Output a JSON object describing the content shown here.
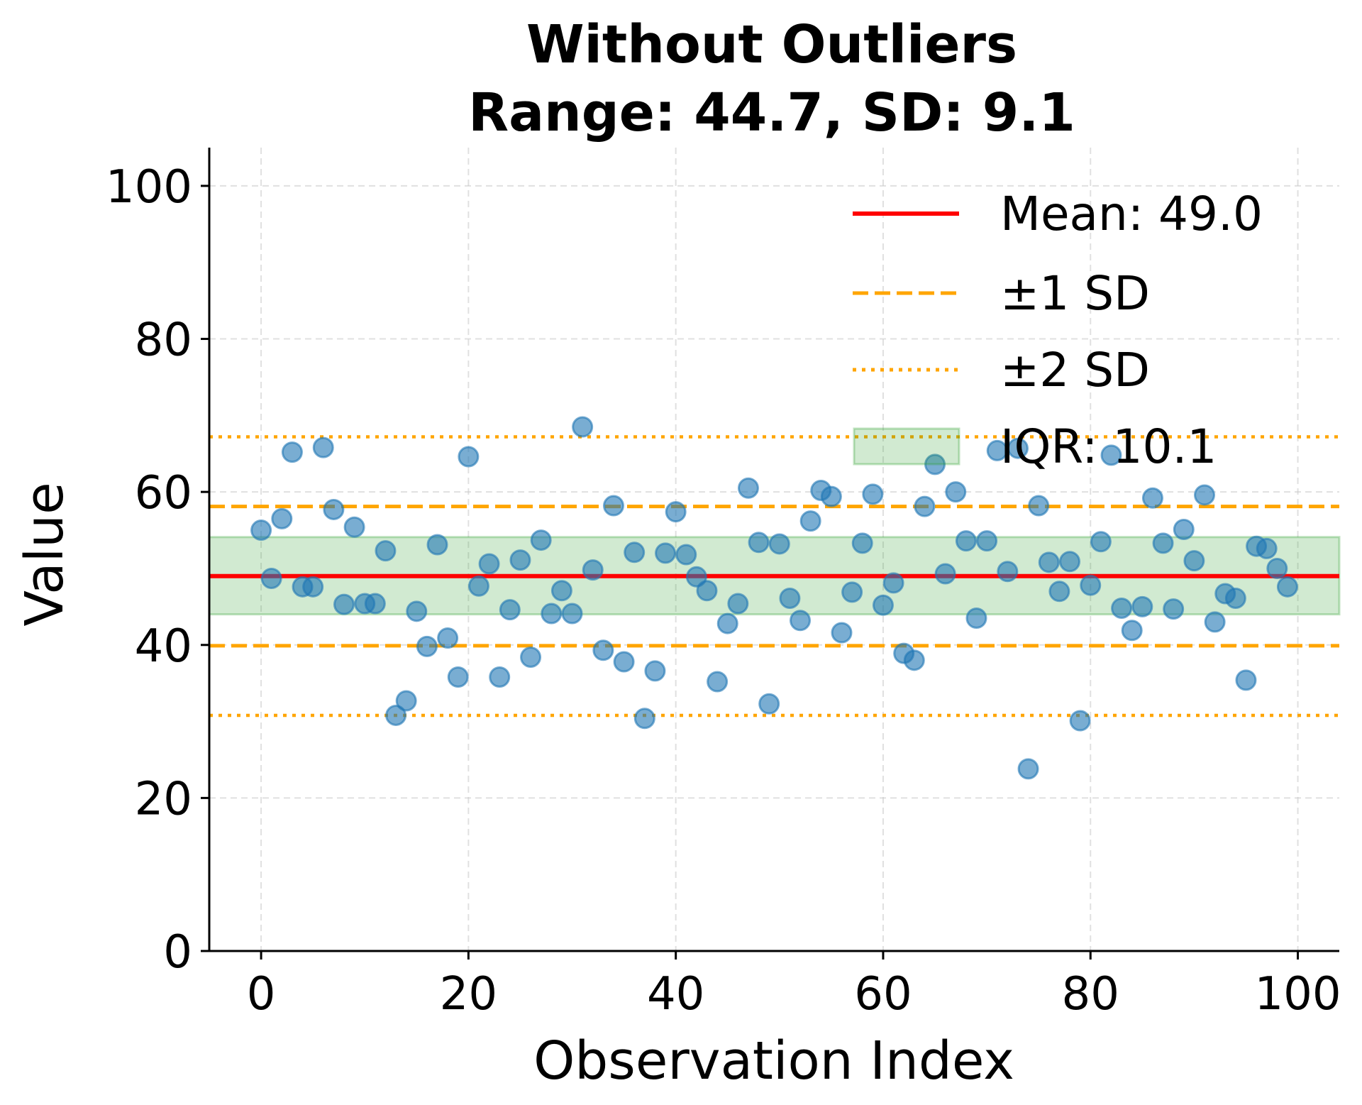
{
  "chart_data": {
    "type": "scatter",
    "title_line1": "Without Outliers",
    "title_line2": "Range: 44.7, SD: 9.1",
    "xlabel": "Observation Index",
    "ylabel": "Value",
    "xlim": [
      -5,
      104
    ],
    "ylim": [
      0,
      105
    ],
    "xticks": [
      0,
      20,
      40,
      60,
      80,
      100
    ],
    "yticks": [
      0,
      20,
      40,
      60,
      80,
      100
    ],
    "grid": true,
    "legend_position": "top-right",
    "colors": {
      "points": "#1f77b4",
      "mean": "#ff0000",
      "sd": "#ffa500",
      "iqr": "#2ca02c"
    },
    "stats": {
      "mean": 49.0,
      "sd": 9.1,
      "sd1_upper": 58.1,
      "sd1_lower": 39.9,
      "sd2_upper": 67.2,
      "sd2_lower": 30.8,
      "iqr_low": 44.0,
      "iqr_high": 54.1
    },
    "legend": {
      "mean": "Mean: 49.0",
      "sd1": "±1 SD",
      "sd2": "±2 SD",
      "iqr": "IQR: 10.1"
    },
    "x": [
      0,
      1,
      2,
      3,
      4,
      5,
      6,
      7,
      8,
      9,
      10,
      11,
      12,
      13,
      14,
      15,
      16,
      17,
      18,
      19,
      20,
      21,
      22,
      23,
      24,
      25,
      26,
      27,
      28,
      29,
      30,
      31,
      32,
      33,
      34,
      35,
      36,
      37,
      38,
      39,
      40,
      41,
      42,
      43,
      44,
      45,
      46,
      47,
      48,
      49,
      50,
      51,
      52,
      53,
      54,
      55,
      56,
      57,
      58,
      59,
      60,
      61,
      62,
      63,
      64,
      65,
      66,
      67,
      68,
      69,
      70,
      71,
      72,
      73,
      74,
      75,
      76,
      77,
      78,
      79,
      80,
      81,
      82,
      83,
      84,
      85,
      86,
      87,
      88,
      89,
      90,
      91,
      92,
      93,
      94,
      95,
      96,
      97,
      98,
      99
    ],
    "y": [
      55.0,
      48.7,
      56.5,
      65.2,
      47.6,
      47.6,
      65.8,
      57.7,
      45.3,
      55.4,
      45.4,
      45.4,
      52.3,
      30.8,
      32.7,
      44.4,
      39.8,
      53.1,
      40.9,
      35.8,
      64.6,
      47.7,
      50.6,
      35.8,
      44.6,
      51.1,
      38.4,
      53.7,
      44.1,
      47.1,
      44.1,
      68.5,
      49.8,
      39.3,
      58.2,
      37.8,
      52.1,
      30.4,
      36.6,
      52.0,
      57.4,
      51.8,
      48.9,
      47.1,
      35.2,
      42.8,
      45.4,
      60.5,
      53.4,
      32.3,
      53.2,
      46.1,
      43.2,
      56.2,
      60.2,
      59.4,
      41.6,
      46.9,
      53.3,
      59.7,
      45.2,
      48.1,
      38.9,
      38.0,
      58.1,
      63.6,
      49.3,
      60.0,
      53.6,
      43.5,
      53.6,
      65.4,
      49.6,
      65.7,
      23.8,
      58.2,
      50.8,
      47.0,
      50.9,
      30.1,
      47.8,
      53.5,
      64.8,
      44.8,
      41.9,
      45.0,
      59.2,
      53.3,
      44.7,
      55.1,
      51.0,
      59.6,
      43.0,
      46.7,
      46.1,
      35.4,
      52.9,
      52.6,
      50.0,
      47.6
    ]
  }
}
